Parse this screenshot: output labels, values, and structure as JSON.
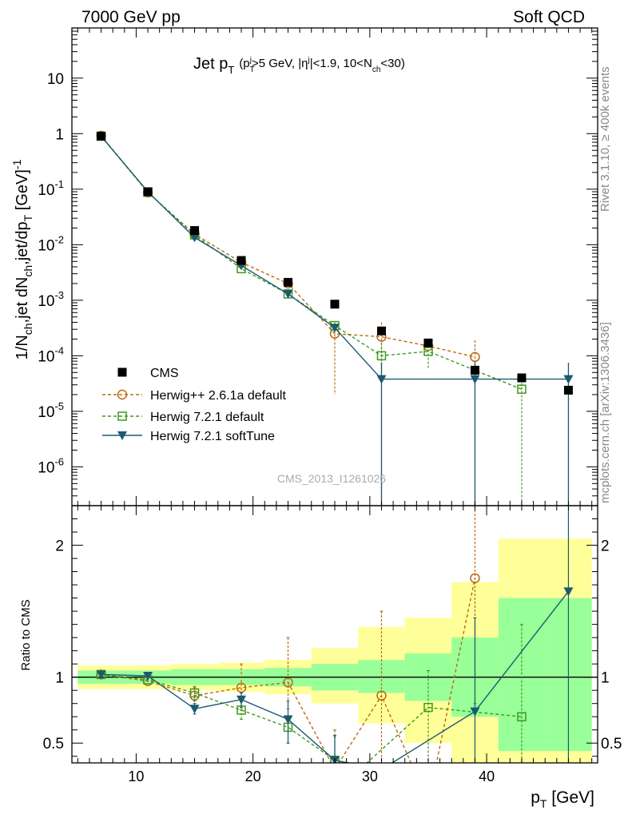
{
  "header": {
    "left": "7000 GeV pp",
    "right": "Soft QCD"
  },
  "side": {
    "rivet": "Rivet 3.1.10, ≥ 400k events",
    "mcplots": "mcplots.cern.ch [arXiv:1306.3436]"
  },
  "chart_data": {
    "type": "scatter",
    "title": {
      "main": "Jet p",
      "main_sub": "T",
      "c1": "(p",
      "c1_sub": "T",
      "c1_sup": "j",
      "c2": ">5 GeV, |η",
      "c2_sup": "j",
      "c3": "|<1.9, 10<N",
      "c3_sub": "ch",
      "c4": "<30)"
    },
    "analysis_id": "CMS_2013_I1261026",
    "xlabel": {
      "main": "p",
      "sub": "T",
      "unit": " [GeV]"
    },
    "ylabel": {
      "p1": "1/N",
      "p1_sub": "ch",
      "p2": ",jet dN",
      "p2_sub": "ch",
      "p3": ",jet/dp",
      "p3_sub": "T",
      "p4": " [GeV]",
      "p4_sup": "-1"
    },
    "ratio_ylabel": "Ratio to CMS",
    "xlim": [
      4.5,
      49.5
    ],
    "ylim": [
      2e-07,
      80
    ],
    "ratio_ylim": [
      0.35,
      2.3
    ],
    "xticks": [
      10,
      20,
      30,
      40
    ],
    "yticks": [
      {
        "v": 1e-06,
        "base": "10",
        "exp": "-6"
      },
      {
        "v": 1e-05,
        "base": "10",
        "exp": "-5"
      },
      {
        "v": 0.0001,
        "base": "10",
        "exp": "-4"
      },
      {
        "v": 0.001,
        "base": "10",
        "exp": "-3"
      },
      {
        "v": 0.01,
        "base": "10",
        "exp": "-2"
      },
      {
        "v": 0.1,
        "base": "10",
        "exp": "-1"
      },
      {
        "v": 1,
        "base": "1",
        "exp": ""
      },
      {
        "v": 10,
        "base": "10",
        "exp": ""
      }
    ],
    "ratio_yticks": [
      {
        "v": 0.5,
        "label": "0.5"
      },
      {
        "v": 1,
        "label": "1"
      },
      {
        "v": 2,
        "label": "2"
      }
    ],
    "bins": [
      [
        5,
        9
      ],
      [
        9,
        13
      ],
      [
        13,
        17
      ],
      [
        17,
        21
      ],
      [
        21,
        25
      ],
      [
        25,
        29
      ],
      [
        29,
        33
      ],
      [
        33,
        37
      ],
      [
        37,
        41
      ],
      [
        41,
        45
      ],
      [
        45,
        49
      ]
    ],
    "band_inner": [
      [
        0.95,
        1.05
      ],
      [
        0.95,
        1.05
      ],
      [
        0.94,
        1.06
      ],
      [
        0.94,
        1.06
      ],
      [
        0.93,
        1.07
      ],
      [
        0.9,
        1.1
      ],
      [
        0.88,
        1.13
      ],
      [
        0.82,
        1.18
      ],
      [
        0.7,
        1.3
      ],
      [
        0.44,
        1.6
      ],
      [
        0.44,
        1.6
      ]
    ],
    "band_outer": [
      [
        0.91,
        1.09
      ],
      [
        0.91,
        1.09
      ],
      [
        0.9,
        1.1
      ],
      [
        0.89,
        1.11
      ],
      [
        0.87,
        1.13
      ],
      [
        0.8,
        1.22
      ],
      [
        0.65,
        1.38
      ],
      [
        0.5,
        1.45
      ],
      [
        0.3,
        1.72
      ],
      [
        0.2,
        2.05
      ],
      [
        0.2,
        2.05
      ]
    ],
    "series": [
      {
        "name": "CMS",
        "color": "#000000",
        "marker": "filled-square",
        "line": "none",
        "x": [
          7,
          11,
          15,
          19,
          23,
          27,
          31,
          35,
          39,
          43,
          47
        ],
        "y": [
          0.9,
          0.09,
          0.018,
          0.0052,
          0.0021,
          0.00085,
          0.00028,
          0.00017,
          5.5e-05,
          4e-05,
          2.4e-05
        ]
      },
      {
        "name": "Herwig++ 2.6.1a default",
        "color": "#b86a14",
        "marker": "open-circle",
        "line": "dashed",
        "x": [
          7,
          11,
          15,
          19,
          23,
          27,
          31,
          35,
          39
        ],
        "y": [
          0.92,
          0.087,
          0.0155,
          0.0048,
          0.002,
          0.00025,
          0.00022,
          0.00015,
          9.5e-05
        ],
        "err_lo": [
          null,
          null,
          null,
          null,
          null,
          2e-05,
          null,
          null,
          null
        ],
        "err_hi": [
          null,
          null,
          null,
          null,
          null,
          0.0004,
          0.0004,
          null,
          0.00019
        ],
        "ratio": [
          1.02,
          0.97,
          0.86,
          0.92,
          0.96,
          0.3,
          0.86,
          0.05,
          1.75
        ],
        "ratio_err": [
          null,
          null,
          [
            0.8,
            0.92
          ],
          [
            0.75,
            1.1
          ],
          [
            0.76,
            1.3
          ],
          [
            0.1,
            0.6
          ],
          [
            0.3,
            1.5
          ],
          null,
          [
            0.8,
            2.4
          ]
        ]
      },
      {
        "name": "Herwig 7.2.1 default",
        "color": "#3d9a1e",
        "marker": "open-square",
        "line": "dashed",
        "x": [
          7,
          11,
          15,
          19,
          23,
          27,
          31,
          35,
          43
        ],
        "y": [
          0.9,
          0.088,
          0.015,
          0.0037,
          0.0013,
          0.00035,
          0.0001,
          0.00012,
          2.5e-05
        ],
        "err_lo": [
          null,
          null,
          null,
          null,
          null,
          null,
          6e-05,
          6e-05,
          null
        ],
        "err_hi": [
          null,
          null,
          null,
          null,
          null,
          null,
          0.00017,
          0.00018,
          4.5e-05
        ],
        "ratio": [
          1.02,
          0.98,
          0.88,
          0.75,
          0.62,
          0.37,
          0.33,
          0.77,
          null,
          0.7
        ],
        "ratio_err": [
          null,
          null,
          [
            0.82,
            0.93
          ],
          [
            0.68,
            0.82
          ],
          [
            0.5,
            0.7
          ],
          [
            0.3,
            0.55
          ],
          null,
          [
            0.2,
            1.05
          ],
          null,
          [
            0.2,
            1.4
          ]
        ],
        "ratio_x": [
          7,
          11,
          15,
          19,
          23,
          27,
          29.5,
          35,
          39,
          43
        ]
      },
      {
        "name": "Herwig 7.2.1 softTune",
        "color": "#1c5a70",
        "marker": "filled-triangle-down",
        "line": "solid",
        "x": [
          7,
          11,
          15,
          19,
          23,
          27,
          31,
          39,
          47
        ],
        "y": [
          0.9,
          0.09,
          0.0135,
          0.0042,
          0.0013,
          0.00032,
          3.8e-05,
          3.8e-05,
          3.8e-05
        ],
        "ratio": [
          1.02,
          1.01,
          0.76,
          0.83,
          0.68,
          0.37,
          0.3,
          0.74,
          1.65
        ],
        "ratio_err": [
          null,
          null,
          [
            0.72,
            0.8
          ],
          [
            0.77,
            0.88
          ],
          [
            0.5,
            0.82
          ],
          [
            0.3,
            0.56
          ],
          null,
          [
            0.3,
            1.45
          ],
          [
            0.3,
            2.3
          ]
        ]
      }
    ]
  }
}
